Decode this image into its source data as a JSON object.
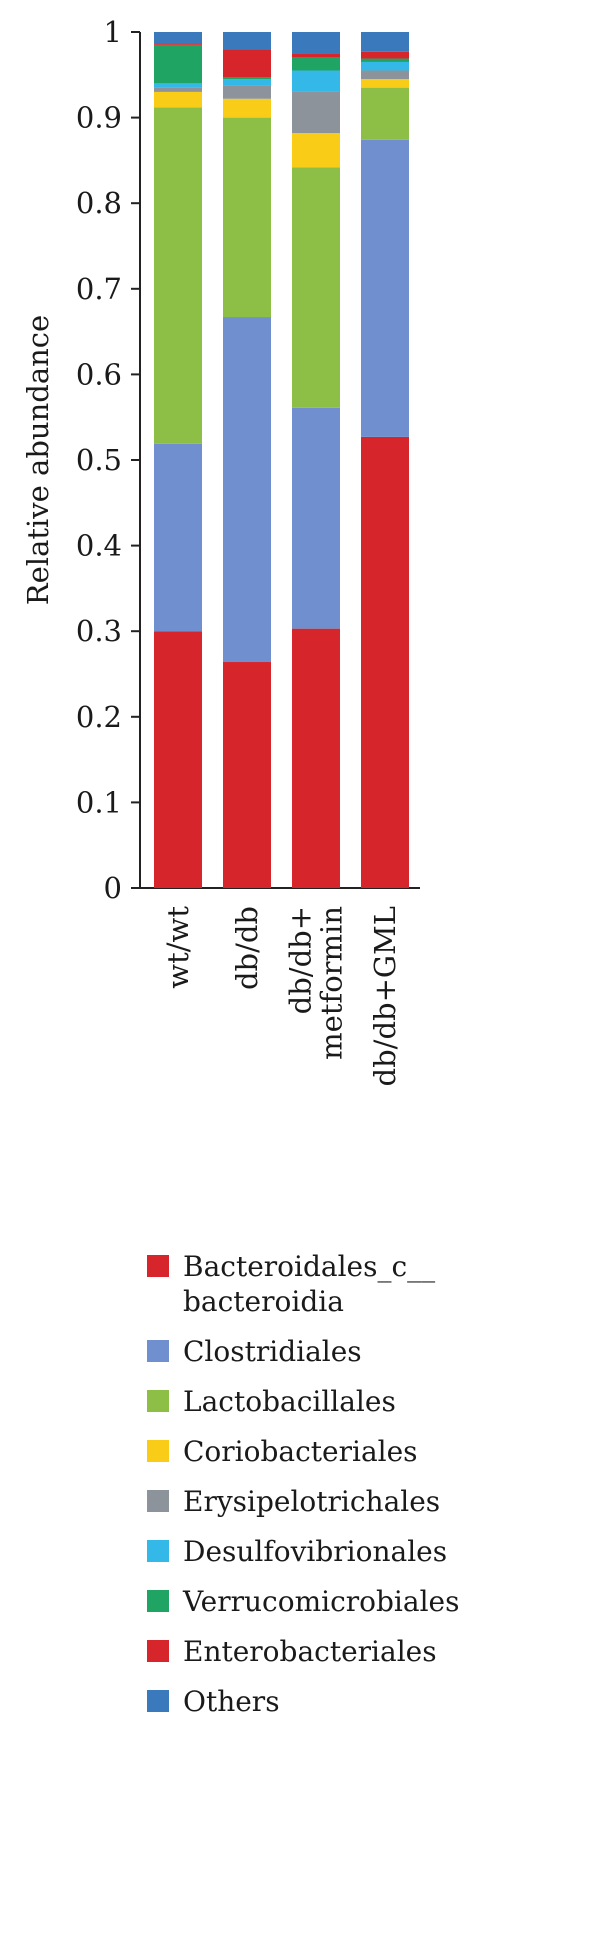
{
  "chart_data": {
    "type": "bar",
    "stacked": true,
    "title": "",
    "xlabel": "",
    "ylabel": "Relative abundance",
    "ylim": [
      0,
      1
    ],
    "yticks": [
      "0",
      "0.1",
      "0.2",
      "0.3",
      "0.4",
      "0.5",
      "0.6",
      "0.7",
      "0.8",
      "0.9",
      "1"
    ],
    "grid": false,
    "legend_position": "bottom",
    "categories": [
      [
        "wt/wt"
      ],
      [
        "db/db"
      ],
      [
        "db/db+",
        "metformin"
      ],
      [
        "db/db+GML"
      ]
    ],
    "series": [
      {
        "name": "Bacteroidales_c__ bacteroidia",
        "legend_lines": [
          "Bacteroidales_c__",
          "bacteroidia"
        ],
        "color": "#d7262b",
        "values": [
          0.3,
          0.264,
          0.303,
          0.527
        ]
      },
      {
        "name": "Clostridiales",
        "legend_lines": [
          "Clostridiales"
        ],
        "color": "#6f8fcf",
        "values": [
          0.219,
          0.403,
          0.258,
          0.347
        ]
      },
      {
        "name": "Lactobacillales",
        "legend_lines": [
          "Lactobacillales"
        ],
        "color": "#8dbe45",
        "values": [
          0.393,
          0.233,
          0.281,
          0.061
        ]
      },
      {
        "name": "Coriobacteriales",
        "legend_lines": [
          "Coriobacteriales"
        ],
        "color": "#f8cc17",
        "values": [
          0.018,
          0.022,
          0.04,
          0.01
        ]
      },
      {
        "name": "Erysipelotrichales",
        "legend_lines": [
          "Erysipelotrichales"
        ],
        "color": "#8c939a",
        "values": [
          0.005,
          0.015,
          0.048,
          0.01
        ]
      },
      {
        "name": "Desulfovibrionales",
        "legend_lines": [
          "Desulfovibrionales"
        ],
        "color": "#33b8e8",
        "values": [
          0.005,
          0.008,
          0.025,
          0.01
        ]
      },
      {
        "name": "Verrucomicrobiales",
        "legend_lines": [
          "Verrucomicrobiales"
        ],
        "color": "#1fa463",
        "values": [
          0.045,
          0.002,
          0.015,
          0.004
        ]
      },
      {
        "name": "Enterobacteriales",
        "legend_lines": [
          "Enterobacteriales"
        ],
        "color": "#d7262b",
        "values": [
          0.002,
          0.033,
          0.005,
          0.008
        ]
      },
      {
        "name": "Others",
        "legend_lines": [
          "Others"
        ],
        "color": "#3b79bd",
        "values": [
          0.013,
          0.02,
          0.025,
          0.023
        ]
      }
    ]
  }
}
